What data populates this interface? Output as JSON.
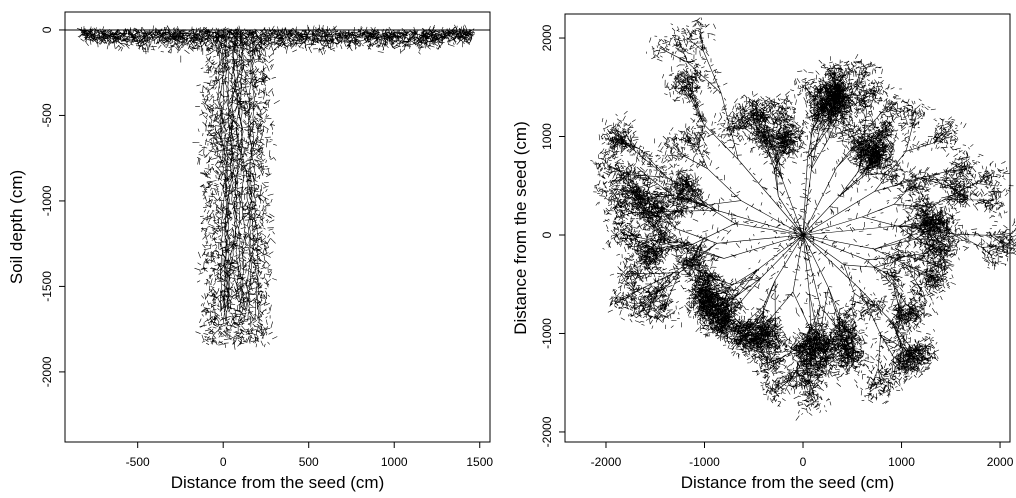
{
  "chart_data": [
    {
      "type": "root-depth",
      "xlabel": "Distance from the seed (cm)",
      "ylabel": "Soil depth (cm)",
      "xlim": [
        -925,
        1560
      ],
      "ylim": [
        -2410,
        105
      ],
      "xticks": [
        -500,
        0,
        500,
        1000,
        1500
      ],
      "yticks": [
        0,
        -500,
        -1000,
        -1500,
        -2000
      ]
    },
    {
      "type": "root-plan",
      "xlabel": "Distance from the seed (cm)",
      "ylabel": "Distance from the seed (cm)",
      "xlim": [
        -2416,
        2101
      ],
      "ylim": [
        -2102,
        2244
      ],
      "xticks": [
        -2000,
        -1000,
        0,
        1000,
        2000
      ],
      "yticks": [
        2000,
        1000,
        0,
        -1000,
        -2000
      ]
    }
  ]
}
